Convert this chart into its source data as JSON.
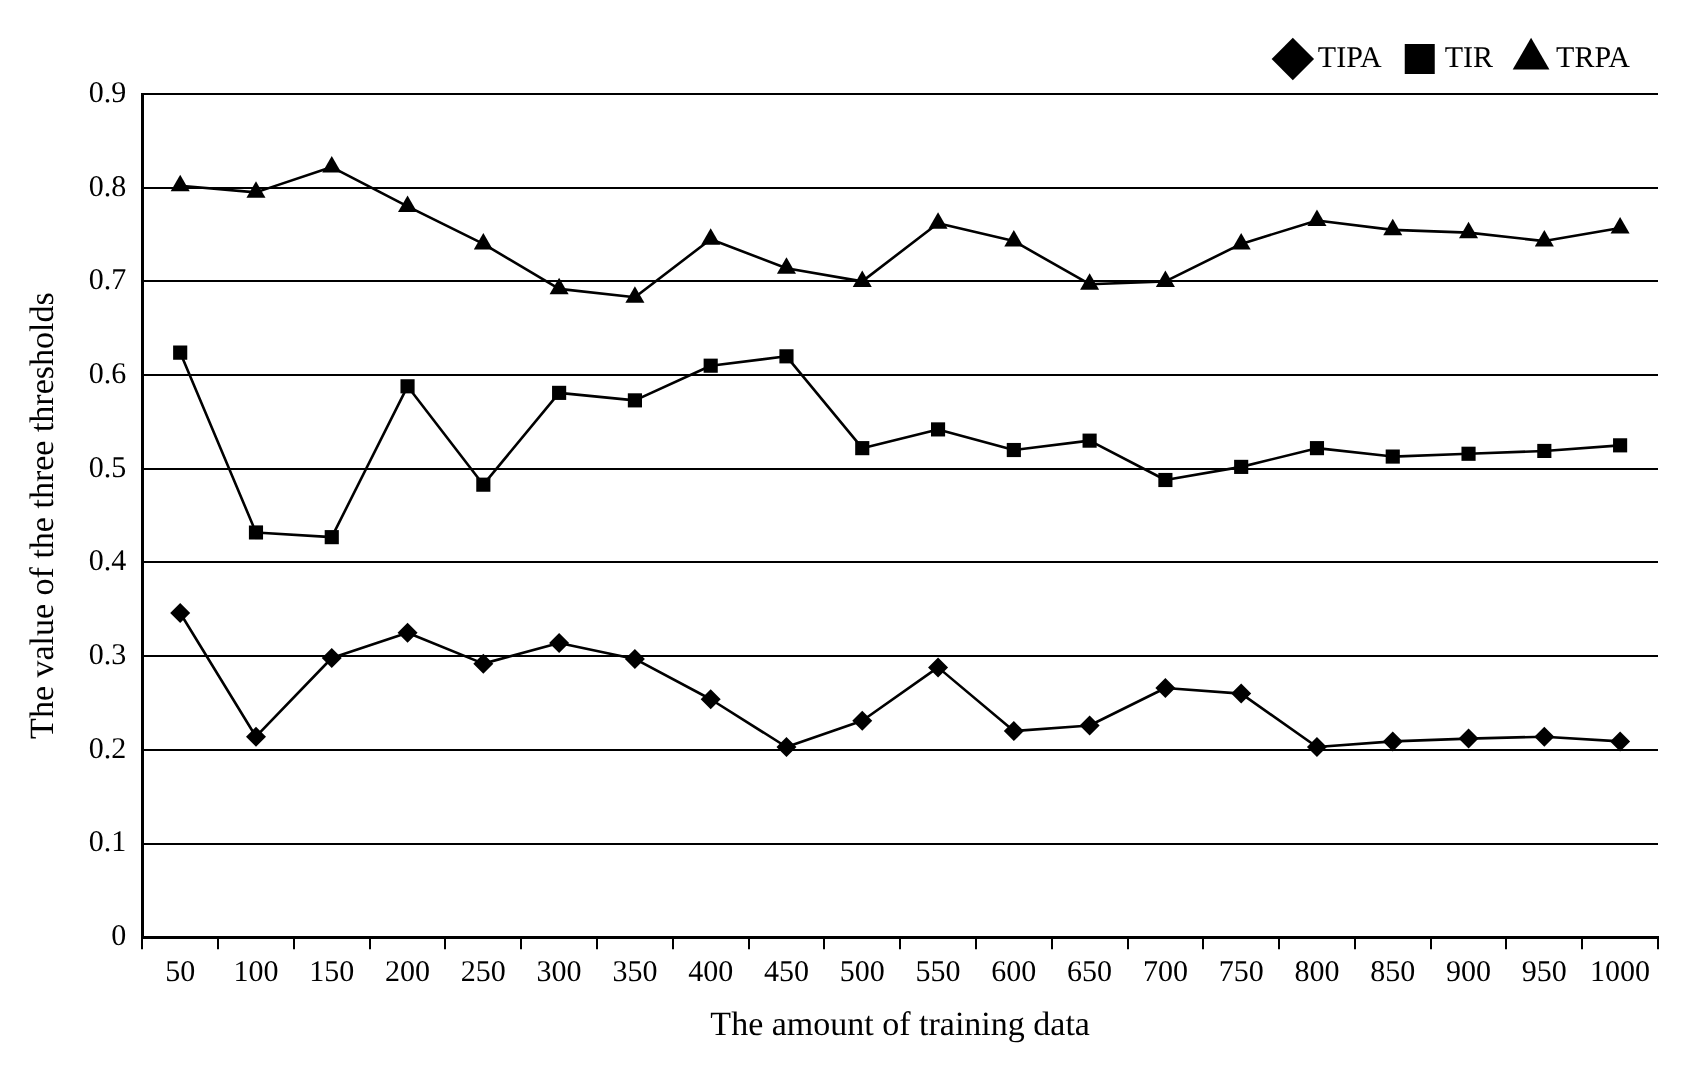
{
  "chart_data": {
    "type": "line",
    "xlabel": "The amount of training data",
    "ylabel": "The value of the three thresholds",
    "categories": [
      "50",
      "100",
      "150",
      "200",
      "250",
      "300",
      "350",
      "400",
      "450",
      "500",
      "550",
      "600",
      "650",
      "700",
      "750",
      "800",
      "850",
      "900",
      "950",
      "1000"
    ],
    "series": [
      {
        "name": "TIPA",
        "color": "#000000",
        "marker": "diamond",
        "values": [
          0.346,
          0.214,
          0.298,
          0.325,
          0.292,
          0.314,
          0.297,
          0.254,
          0.203,
          0.231,
          0.288,
          0.22,
          0.226,
          0.266,
          0.26,
          0.203,
          0.209,
          0.212,
          0.214,
          0.209
        ]
      },
      {
        "name": "TIR",
        "color": "#000000",
        "marker": "square",
        "values": [
          0.624,
          0.432,
          0.427,
          0.588,
          0.483,
          0.581,
          0.573,
          0.61,
          0.62,
          0.522,
          0.542,
          0.52,
          0.53,
          0.488,
          0.502,
          0.522,
          0.513,
          0.516,
          0.519,
          0.525
        ]
      },
      {
        "name": "TRPA",
        "color": "#000000",
        "marker": "triangle",
        "values": [
          0.802,
          0.795,
          0.822,
          0.78,
          0.74,
          0.692,
          0.683,
          0.745,
          0.714,
          0.7,
          0.762,
          0.743,
          0.697,
          0.7,
          0.74,
          0.765,
          0.755,
          0.752,
          0.743,
          0.757
        ]
      }
    ],
    "ylim": [
      0,
      0.9
    ],
    "yticks": [
      0,
      0.1,
      0.2,
      0.3,
      0.4,
      0.5,
      0.6,
      0.7,
      0.8,
      0.9
    ],
    "grid": "y",
    "legend": "top right",
    "line_style": "solid"
  }
}
